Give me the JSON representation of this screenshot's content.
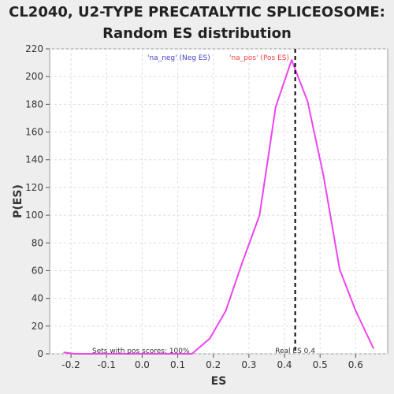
{
  "chart_data": {
    "type": "line",
    "title_line1": "CL2040, U2-TYPE PRECATALYTIC SPLICEOSOME:",
    "title_line2": "Random ES distribution",
    "xlabel": "ES",
    "ylabel": "P(ES)",
    "xlim": [
      -0.26,
      0.69
    ],
    "ylim": [
      0,
      220
    ],
    "x_ticks": [
      -0.2,
      -0.1,
      0.0,
      0.1,
      0.2,
      0.3,
      0.4,
      0.5,
      0.6
    ],
    "x_tick_labels": [
      "-0.2",
      "-0.1",
      "0.0",
      "0.1",
      "0.2",
      "0.3",
      "0.4",
      "0.5",
      "0.6"
    ],
    "y_ticks": [
      0,
      20,
      40,
      60,
      80,
      100,
      120,
      140,
      160,
      180,
      200,
      220
    ],
    "y_tick_labels": [
      "0",
      "20",
      "40",
      "60",
      "80",
      "100",
      "120",
      "140",
      "160",
      "180",
      "200",
      "220"
    ],
    "grid": true,
    "series": [
      {
        "name": "",
        "color": "#ee44ee",
        "x": [
          -0.22,
          -0.19,
          -0.13,
          -0.09,
          0.0,
          0.05,
          0.09,
          0.14,
          0.19,
          0.235,
          0.28,
          0.33,
          0.375,
          0.42,
          0.465,
          0.51,
          0.555,
          0.6,
          0.65
        ],
        "y": [
          1,
          0,
          0,
          0,
          0,
          0,
          0,
          0,
          11,
          31,
          65,
          100,
          178,
          212,
          182,
          128,
          61,
          31,
          4
        ]
      }
    ],
    "vline": {
      "x": 0.43,
      "label": "Real ES 0.4",
      "color": "#000000"
    },
    "legend": [
      {
        "label": "'na_neg' (Neg ES)",
        "color": "#4444cc"
      },
      {
        "label": "'na_pos' (Pos ES)",
        "color": "#ee4444"
      }
    ],
    "annotation": "Sets with pos scores: 100%"
  }
}
